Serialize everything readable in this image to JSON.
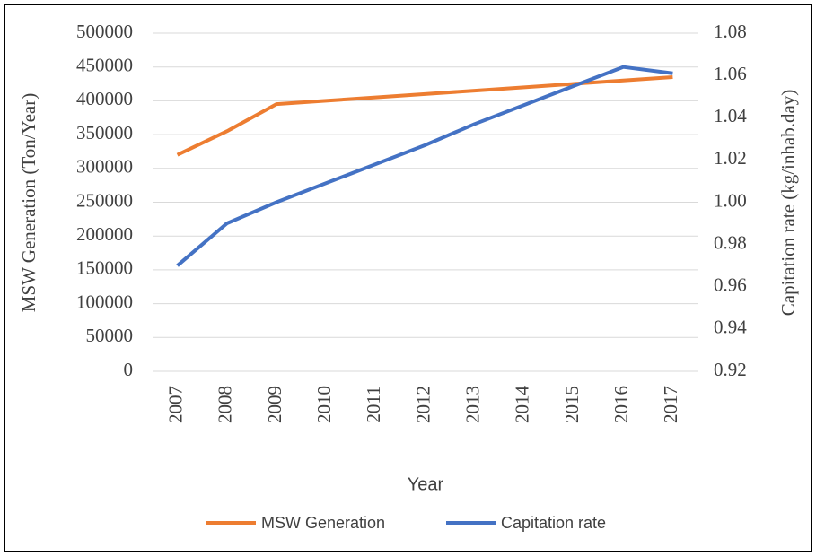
{
  "chart_data": {
    "type": "line",
    "x_label": "Year",
    "y_label": "MSW Generation (Ton/Year)",
    "y2_label": "Capitation rate (kg/inhab.day)",
    "categories": [
      "2007",
      "2008",
      "2009",
      "2010",
      "2011",
      "2012",
      "2013",
      "2014",
      "2015",
      "2016",
      "2017"
    ],
    "series": [
      {
        "name": "MSW Generation",
        "color": "#ED7D31",
        "values": [
          320000,
          355000,
          395000,
          400000,
          405000,
          410000,
          415000,
          420000,
          425000,
          430000,
          435000
        ]
      },
      {
        "name": "Capitation rate",
        "color": "#4472C4",
        "axis": "y2",
        "values": [
          0.97,
          0.99,
          1.0,
          1.009,
          1.018,
          1.027,
          1.037,
          1.046,
          1.055,
          1.064,
          1.061
        ]
      }
    ],
    "ylim": [
      0,
      500000
    ],
    "yticks": [
      0,
      50000,
      100000,
      150000,
      200000,
      250000,
      300000,
      350000,
      400000,
      450000,
      500000
    ],
    "y2lim": [
      0.92,
      1.08
    ],
    "y2ticks": [
      0.92,
      0.94,
      0.96,
      0.98,
      {
        "value": 1.0,
        "label": "1.00"
      },
      1.02,
      1.04,
      1.06,
      1.08
    ],
    "grid": true,
    "legend": "bottom"
  }
}
